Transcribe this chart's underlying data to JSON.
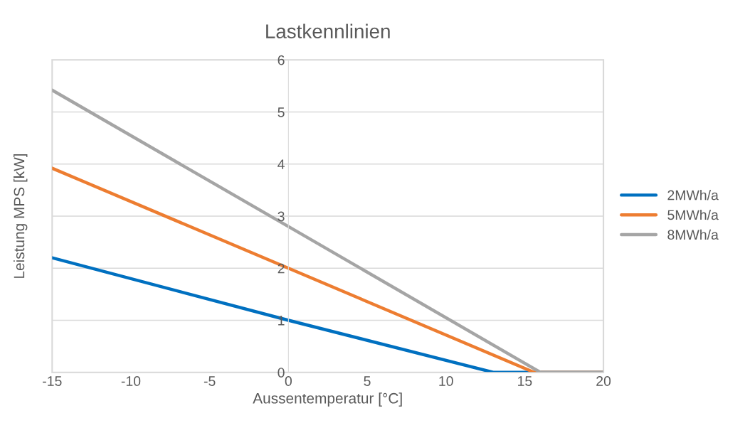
{
  "chart_data": {
    "type": "line",
    "title": "Lastkennlinien",
    "xlabel": "Aussentemperatur [°C]",
    "ylabel": "Leistung MPS [kW]",
    "xlim": [
      -15,
      20
    ],
    "xticks": [
      -15,
      -10,
      -5,
      0,
      5,
      10,
      15,
      20
    ],
    "ylim": [
      0,
      6
    ],
    "yticks": [
      0,
      1,
      2,
      3,
      4,
      5,
      6
    ],
    "grid": "y",
    "legend": "right",
    "marker": "none",
    "line_style": "solid",
    "series": [
      {
        "name": "2MWh/a",
        "color": "#0070c0",
        "x": [
          -15,
          0,
          13,
          20
        ],
        "values": [
          2.2,
          1.0,
          0,
          0
        ]
      },
      {
        "name": "5MWh/a",
        "color": "#ed7d31",
        "x": [
          -15,
          0,
          15.6,
          20
        ],
        "values": [
          3.92,
          2.0,
          0,
          0
        ]
      },
      {
        "name": "8MWh/a",
        "color": "#a5a5a5",
        "x": [
          -15,
          0,
          16,
          20
        ],
        "values": [
          5.42,
          2.8,
          0,
          0
        ]
      }
    ]
  }
}
